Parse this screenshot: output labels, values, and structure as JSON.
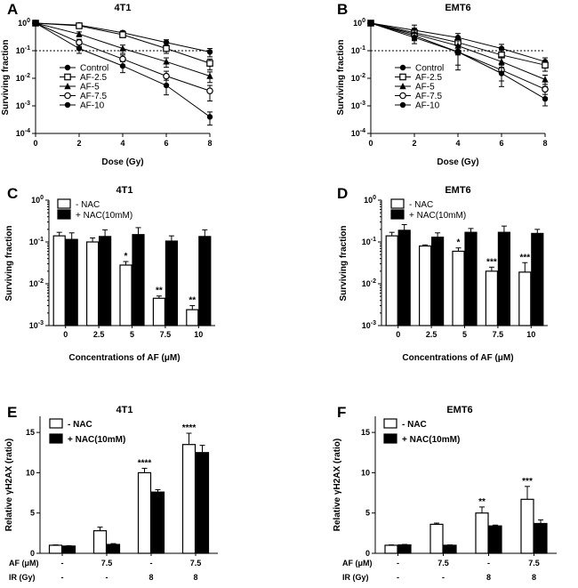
{
  "colors": {
    "ink": "#000000",
    "paper": "#ffffff"
  },
  "chart_data": [
    {
      "panel": "A",
      "type": "line",
      "title": "4T1",
      "xlabel": "Dose (Gy)",
      "ylabel": "Surviving fraction",
      "yscale": "log",
      "xlim": [
        0,
        8
      ],
      "ylim": [
        0.0001,
        1
      ],
      "xticks": [
        "0",
        "2",
        "4",
        "6",
        "8"
      ],
      "yticks": [
        {
          "exp": "0",
          "v": 1
        },
        {
          "exp": "-1",
          "v": 0.1
        },
        {
          "exp": "-2",
          "v": 0.01
        },
        {
          "exp": "-3",
          "v": 0.001
        },
        {
          "exp": "-4",
          "v": 0.0001
        }
      ],
      "reference_line": 0.1,
      "x": [
        0,
        2,
        4,
        6,
        8
      ],
      "series": [
        {
          "name": "Control",
          "marker": "filled-circle",
          "values": [
            1,
            0.85,
            0.45,
            0.2,
            0.09
          ],
          "errors": [
            0.05,
            0.1,
            0.07,
            0.05,
            0.03
          ]
        },
        {
          "name": "AF-2.5",
          "marker": "open-square",
          "values": [
            1,
            0.8,
            0.38,
            0.12,
            0.035
          ],
          "errors": [
            0.05,
            0.12,
            0.08,
            0.04,
            0.015
          ]
        },
        {
          "name": "AF-5",
          "marker": "filled-triangle",
          "values": [
            1,
            0.4,
            0.12,
            0.04,
            0.012
          ],
          "errors": [
            0.05,
            0.08,
            0.04,
            0.015,
            0.005
          ]
        },
        {
          "name": "AF-7.5",
          "marker": "open-circle",
          "values": [
            1,
            0.2,
            0.05,
            0.012,
            0.0035
          ],
          "errors": [
            0.05,
            0.06,
            0.02,
            0.006,
            0.002
          ]
        },
        {
          "name": "AF-10",
          "marker": "filled-circle",
          "values": [
            1,
            0.12,
            0.028,
            0.0055,
            0.0004
          ],
          "errors": [
            0.05,
            0.04,
            0.012,
            0.003,
            0.0002
          ]
        }
      ]
    },
    {
      "panel": "B",
      "type": "line",
      "title": "EMT6",
      "xlabel": "Dose (Gy)",
      "ylabel": "Surviving fraction",
      "yscale": "log",
      "xlim": [
        0,
        8
      ],
      "ylim": [
        0.0001,
        1
      ],
      "xticks": [
        "0",
        "2",
        "4",
        "6",
        "8"
      ],
      "yticks": [
        {
          "exp": "0",
          "v": 1
        },
        {
          "exp": "-1",
          "v": 0.1
        },
        {
          "exp": "-2",
          "v": 0.01
        },
        {
          "exp": "-3",
          "v": 0.001
        },
        {
          "exp": "-4",
          "v": 0.0001
        }
      ],
      "reference_line": 0.1,
      "x": [
        0,
        2,
        4,
        6,
        8
      ],
      "series": [
        {
          "name": "Control",
          "marker": "filled-circle",
          "values": [
            1,
            0.55,
            0.3,
            0.12,
            0.04
          ],
          "errors": [
            0.1,
            0.3,
            0.12,
            0.05,
            0.015
          ]
        },
        {
          "name": "AF-2.5",
          "marker": "open-square",
          "values": [
            1,
            0.45,
            0.2,
            0.07,
            0.03
          ],
          "errors": [
            0.1,
            0.2,
            0.1,
            0.04,
            0.012
          ]
        },
        {
          "name": "AF-5",
          "marker": "filled-triangle",
          "values": [
            1,
            0.4,
            0.15,
            0.04,
            0.009
          ],
          "errors": [
            0.1,
            0.15,
            0.08,
            0.02,
            0.004
          ]
        },
        {
          "name": "AF-7.5",
          "marker": "open-circle",
          "values": [
            1,
            0.35,
            0.09,
            0.02,
            0.004
          ],
          "errors": [
            0.1,
            0.12,
            0.06,
            0.012,
            0.002
          ]
        },
        {
          "name": "AF-10",
          "marker": "filled-circle",
          "values": [
            1,
            0.3,
            0.09,
            0.015,
            0.0018
          ],
          "errors": [
            0.1,
            0.12,
            0.07,
            0.01,
            0.0008
          ]
        }
      ]
    },
    {
      "panel": "C",
      "type": "bar",
      "title": "4T1",
      "xlabel": "Concentrations of AF (μM)",
      "ylabel": "Surviving fraction",
      "yscale": "log",
      "ylim": [
        0.001,
        1
      ],
      "yticks": [
        {
          "exp": "0",
          "v": 1
        },
        {
          "exp": "-1",
          "v": 0.1
        },
        {
          "exp": "-2",
          "v": 0.01
        },
        {
          "exp": "-3",
          "v": 0.001
        }
      ],
      "categories": [
        "0",
        "2.5",
        "5",
        "7.5",
        "10"
      ],
      "series": [
        {
          "name": "- NAC",
          "fill": "white",
          "values": [
            0.14,
            0.1,
            0.028,
            0.0045,
            0.0024
          ],
          "errors": [
            0.03,
            0.025,
            0.006,
            0.0006,
            0.0006
          ]
        },
        {
          "name": "+ NAC(10mM)",
          "fill": "black",
          "values": [
            0.115,
            0.135,
            0.15,
            0.105,
            0.135
          ],
          "errors": [
            0.05,
            0.06,
            0.07,
            0.035,
            0.06
          ]
        }
      ],
      "significance": [
        "",
        "",
        "*",
        "**",
        "**"
      ]
    },
    {
      "panel": "D",
      "type": "bar",
      "title": "EMT6",
      "xlabel": "Concentrations of AF (μM)",
      "ylabel": "Surviving fraction",
      "yscale": "log",
      "ylim": [
        0.001,
        1
      ],
      "yticks": [
        {
          "exp": "0",
          "v": 1
        },
        {
          "exp": "-1",
          "v": 0.1
        },
        {
          "exp": "-2",
          "v": 0.01
        },
        {
          "exp": "-3",
          "v": 0.001
        }
      ],
      "categories": [
        "0",
        "2.5",
        "5",
        "7.5",
        "10"
      ],
      "series": [
        {
          "name": "- NAC",
          "fill": "white",
          "values": [
            0.14,
            0.08,
            0.06,
            0.02,
            0.019
          ],
          "errors": [
            0.03,
            0.005,
            0.012,
            0.005,
            0.013
          ]
        },
        {
          "name": "+ NAC(10mM)",
          "fill": "black",
          "values": [
            0.19,
            0.13,
            0.17,
            0.17,
            0.16
          ],
          "errors": [
            0.07,
            0.035,
            0.04,
            0.07,
            0.04
          ]
        }
      ],
      "significance": [
        "",
        "",
        "*",
        "***",
        "***"
      ]
    },
    {
      "panel": "E",
      "type": "bar",
      "title": "4T1",
      "ylabel": "Relative γH2AX (ratio)",
      "ylim": [
        0,
        17
      ],
      "yticks": [
        0,
        5,
        10,
        15
      ],
      "rows": [
        {
          "label": "AF (μM)",
          "values": [
            "-",
            "7.5",
            "-",
            "7.5"
          ]
        },
        {
          "label": "IR (Gy)",
          "values": [
            "-",
            "-",
            "8",
            "8"
          ]
        }
      ],
      "series": [
        {
          "name": "- NAC",
          "fill": "white",
          "values": [
            1,
            2.8,
            10,
            13.5
          ],
          "errors": [
            0.05,
            0.45,
            0.55,
            1.4
          ]
        },
        {
          "name": "+ NAC(10mM)",
          "fill": "black",
          "values": [
            0.9,
            1.1,
            7.6,
            12.5
          ],
          "errors": [
            0.05,
            0.1,
            0.3,
            0.9
          ]
        }
      ],
      "significance": [
        "",
        "",
        "****",
        "****"
      ]
    },
    {
      "panel": "F",
      "type": "bar",
      "title": "EMT6",
      "ylabel": "Relative γH2AX (ratio)",
      "ylim": [
        0,
        17
      ],
      "yticks": [
        0,
        5,
        10,
        15
      ],
      "rows": [
        {
          "label": "AF (μM)",
          "values": [
            "-",
            "7.5",
            "-",
            "7.5"
          ]
        },
        {
          "label": "IR (Gy)",
          "values": [
            "-",
            "-",
            "8",
            "8"
          ]
        }
      ],
      "series": [
        {
          "name": "- NAC",
          "fill": "white",
          "values": [
            1,
            3.6,
            5,
            6.7
          ],
          "errors": [
            0.05,
            0.15,
            0.75,
            1.6
          ]
        },
        {
          "name": "+ NAC(10mM)",
          "fill": "black",
          "values": [
            1.05,
            1.0,
            3.4,
            3.7
          ],
          "errors": [
            0.05,
            0.05,
            0.1,
            0.45
          ]
        }
      ],
      "significance": [
        "",
        "",
        "**",
        "***"
      ]
    }
  ]
}
